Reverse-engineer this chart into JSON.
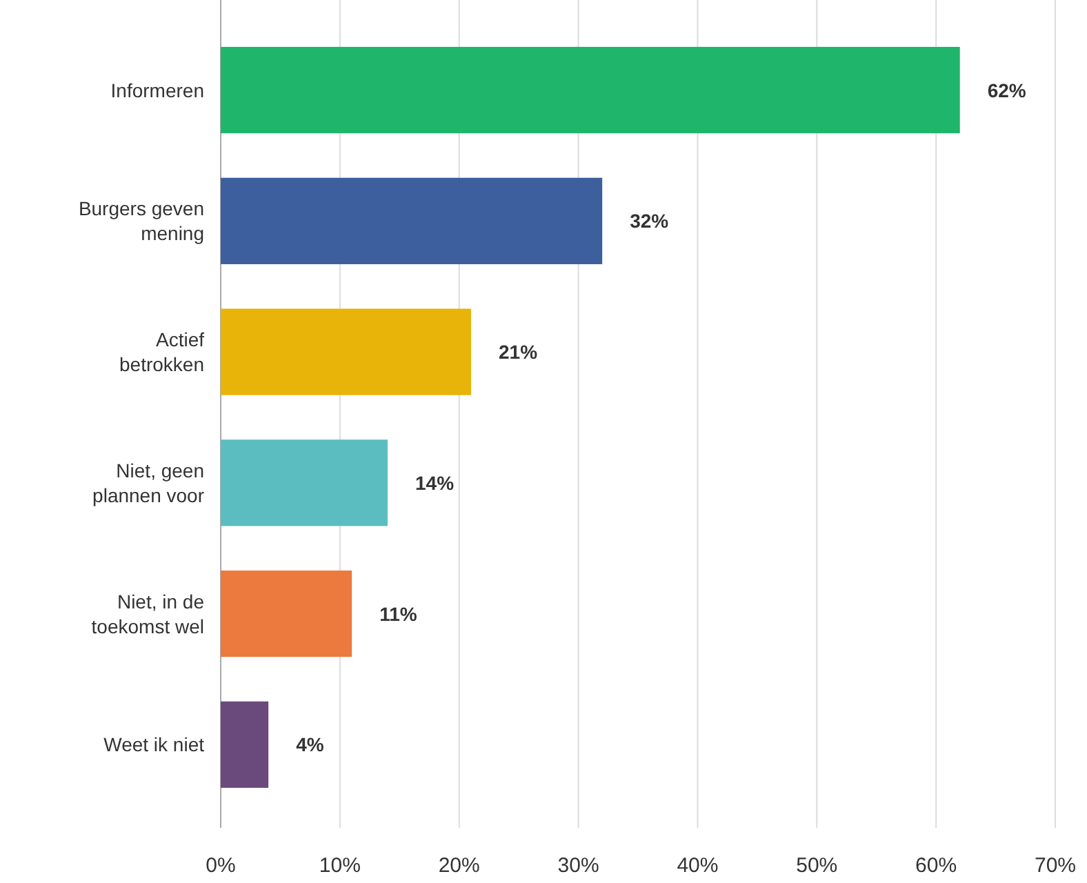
{
  "chart_data": {
    "type": "bar",
    "orientation": "horizontal",
    "categories": [
      "Informeren",
      "Burgers geven mening",
      "Actief betrokken",
      "Niet, geen plannen voor",
      "Niet, in de toekomst wel",
      "Weet ik niet"
    ],
    "values": [
      62,
      32,
      21,
      14,
      11,
      4
    ],
    "colors": [
      "#1fb56b",
      "#3d5f9e",
      "#e8b40a",
      "#5bbdc0",
      "#ec7a3f",
      "#6a4a7c"
    ],
    "value_labels": [
      "62%",
      "32%",
      "21%",
      "14%",
      "11%",
      "4%"
    ],
    "xlim": [
      0,
      70
    ],
    "xticks": [
      {
        "value": 0,
        "label": "0%"
      },
      {
        "value": 10,
        "label": "10%"
      },
      {
        "value": 20,
        "label": "20%"
      },
      {
        "value": 30,
        "label": "30%"
      },
      {
        "value": 40,
        "label": "40%"
      },
      {
        "value": 50,
        "label": "50%"
      },
      {
        "value": 60,
        "label": "60%"
      },
      {
        "value": 70,
        "label": "70%"
      }
    ],
    "grid": "x"
  }
}
